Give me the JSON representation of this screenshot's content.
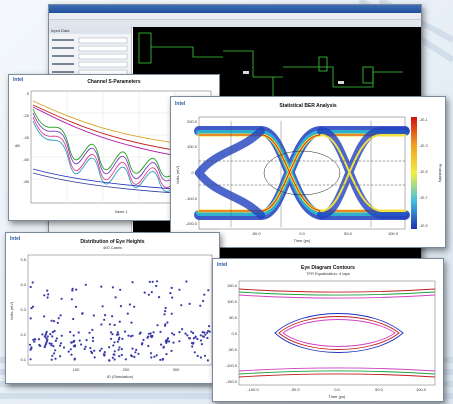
{
  "brand": "Intel",
  "main_window": {
    "title": "Channel Designer",
    "left_header": "Input Data"
  },
  "sparam_window": {
    "title": "Channel S-Parameters",
    "xlabel": "Xaxis 1",
    "ylabel": "dB",
    "yticks": [
      "0",
      "-20",
      "-40",
      "-60",
      "-80"
    ]
  },
  "ber_window": {
    "title": "Statistical BER Analysis",
    "xlabel": "Time (ps)",
    "ylabel": "Volts (mV)",
    "colorbar_label": "Probability",
    "colorbar_ticks": [
      "-1E-1",
      "-1E-3",
      "-1E-5",
      "-1E-7",
      "-1E-9"
    ],
    "yticks": [
      "200.0",
      "100.0",
      "0.0",
      "-100.0",
      "-200.0"
    ],
    "xticks": [
      "-100.0",
      "-50.0",
      "0.0",
      "50.0",
      "100.0"
    ]
  },
  "dist_window": {
    "title": "Distribution of Eye Heights",
    "subtitle": "400 Cases",
    "xlabel": "ID (Simulation)",
    "ylabel": "Volts (mV)",
    "yticks": [
      "0.5",
      "0.4",
      "0.3",
      "0.2",
      "0.1"
    ],
    "xticks": [
      "100",
      "200",
      "300"
    ]
  },
  "eye_window": {
    "title": "Eye Diagram Contours",
    "subtitle": "TFR Equalization: 4 taps",
    "xlabel": "Time (ps)",
    "yticks": [
      "150.0",
      "100.0",
      "50.0",
      "0.0",
      "-50.0",
      "-100.0",
      "-150.0"
    ],
    "xticks": [
      "-100.0",
      "-50.0",
      "0.0",
      "50.0",
      "100.0"
    ]
  },
  "colors": {
    "accent": "#2c5aa0",
    "panel_bg": "#000000"
  }
}
